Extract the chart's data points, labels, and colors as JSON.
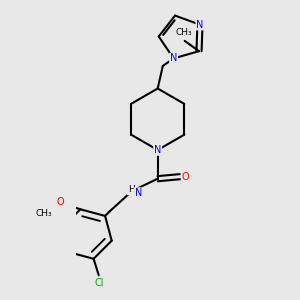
{
  "background_color": "#e8e8e8",
  "bond_color": "#000000",
  "atom_colors": {
    "N": "#0000ff",
    "O": "#ff0000",
    "Cl": "#00aa00",
    "C": "#000000",
    "H": "#000000"
  },
  "bond_width": 1.5,
  "figsize": [
    3.0,
    3.0
  ],
  "dpi": 100
}
